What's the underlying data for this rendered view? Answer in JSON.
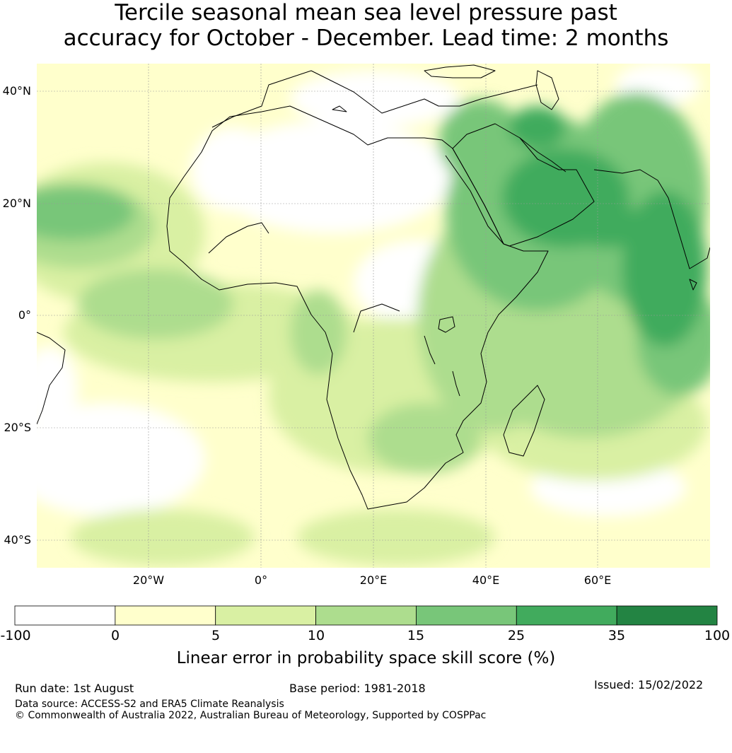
{
  "title": {
    "line1": "Tercile seasonal mean sea level pressure past",
    "line2": "accuracy for October - December. Lead time: 2 months"
  },
  "map": {
    "lat_labels": [
      "40°N",
      "20°N",
      "0°",
      "20°S",
      "40°S"
    ],
    "lon_labels": [
      "20°W",
      "0°",
      "20°E",
      "40°E",
      "60°E"
    ],
    "colors": {
      "ocean_low": "#ffffcc",
      "coast": "#000000",
      "grid": "#999999"
    }
  },
  "colorbar": {
    "ticks": [
      "-100",
      "0",
      "5",
      "10",
      "15",
      "25",
      "35",
      "100"
    ],
    "colors": [
      "#ffffff",
      "#ffffcc",
      "#d9f0a3",
      "#addd8e",
      "#78c679",
      "#41ab5d",
      "#238443"
    ],
    "label": "Linear error in probability space skill score (%)"
  },
  "footer": {
    "run_date": "Run date: 1st August",
    "base_period": "Base period: 1981-2018",
    "issued": "Issued: 15/02/2022",
    "data_source": "Data source: ACCESS-S2 and ERA5 Climate Reanalysis",
    "copyright": "© Commonwealth of Australia 2022, Australian Bureau of Meteorology, Supported by COSPPac"
  }
}
